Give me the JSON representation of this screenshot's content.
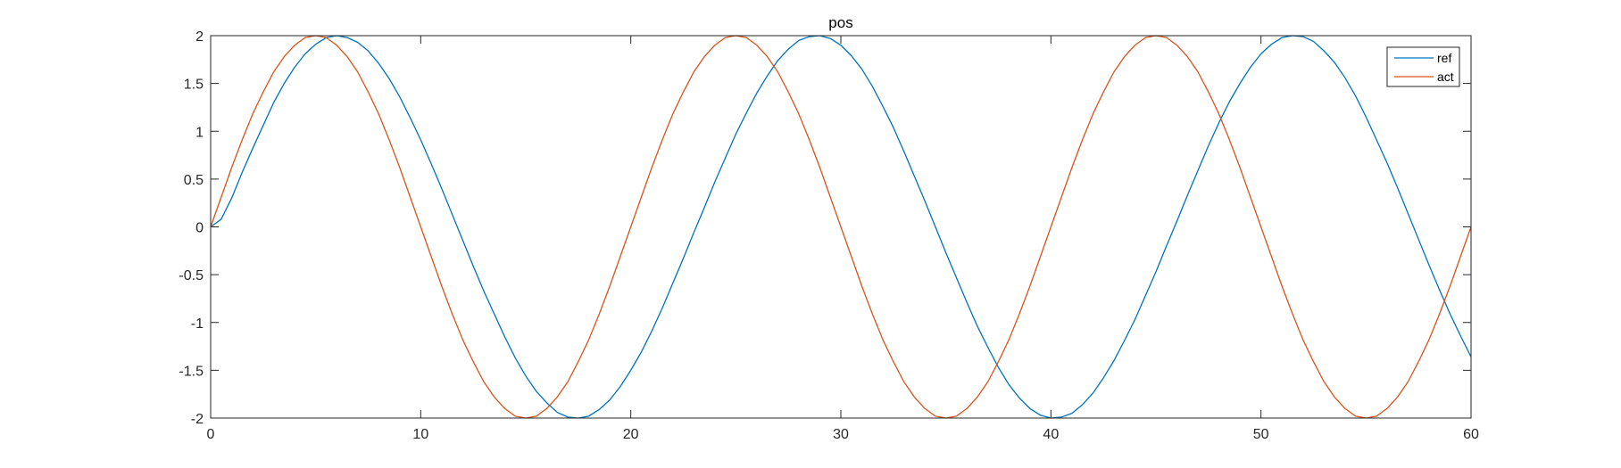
{
  "chart_data": {
    "type": "line",
    "title": "pos",
    "xlabel": "",
    "ylabel": "",
    "xlim": [
      0,
      60
    ],
    "ylim": [
      -2,
      2
    ],
    "xticks": [
      0,
      10,
      20,
      30,
      40,
      50,
      60
    ],
    "xtick_labels": [
      "0",
      "10",
      "20",
      "30",
      "40",
      "50",
      "60"
    ],
    "yticks": [
      2,
      1.5,
      1,
      0.5,
      0,
      -0.5,
      -1,
      -1.5,
      -2
    ],
    "ytick_labels": [
      "2",
      "1.5",
      "1",
      "0.5",
      "0",
      "-0.5",
      "-1",
      "-1.5",
      "-2"
    ],
    "grid": false,
    "legend": {
      "position": "top-right",
      "entries": [
        "ref",
        "act"
      ]
    },
    "series": [
      {
        "name": "ref",
        "color": "#0072BD",
        "description_function": "lagged sine, amplitude 2, period 20",
        "x": [
          0,
          0.5,
          1,
          1.5,
          2,
          2.5,
          3,
          3.5,
          4,
          4.5,
          5,
          5.5,
          6,
          6.5,
          7,
          7.5,
          8,
          8.5,
          9,
          9.5,
          10,
          10.5,
          11,
          11.5,
          12,
          12.5,
          13,
          13.5,
          14,
          14.5,
          15,
          15.5,
          16,
          16.5,
          17,
          17.5,
          18,
          18.5,
          19,
          19.5,
          20,
          20.5,
          21,
          21.5,
          22,
          22.5,
          23,
          23.5,
          24,
          24.5,
          25,
          25.5,
          26,
          26.5,
          27,
          27.5,
          28,
          28.5,
          29,
          29.5,
          30,
          30.5,
          31,
          31.5,
          32,
          32.5,
          33,
          33.5,
          34,
          34.5,
          35,
          35.5,
          36,
          36.5,
          37,
          37.5,
          38,
          38.5,
          39,
          39.5,
          40,
          40.5,
          41,
          41.5,
          42,
          42.5,
          43,
          43.5,
          44,
          44.5,
          45,
          45.5,
          46,
          46.5,
          47,
          47.5,
          48,
          48.5,
          49,
          49.5,
          50,
          50.5,
          51,
          51.5,
          52,
          52.5,
          53,
          53.5,
          54,
          54.5,
          55,
          55.5,
          56,
          56.5,
          57,
          57.5,
          58,
          58.5,
          59,
          59.5,
          60
        ],
        "y": [
          0,
          0.08,
          0.3,
          0.57,
          0.82,
          1.06,
          1.3,
          1.5,
          1.67,
          1.81,
          1.91,
          1.98,
          2.0,
          1.98,
          1.93,
          1.84,
          1.71,
          1.55,
          1.36,
          1.14,
          0.91,
          0.66,
          0.4,
          0.13,
          -0.14,
          -0.41,
          -0.67,
          -0.91,
          -1.15,
          -1.37,
          -1.56,
          -1.72,
          -1.84,
          -1.94,
          -1.99,
          -2.0,
          -1.98,
          -1.91,
          -1.81,
          -1.67,
          -1.5,
          -1.31,
          -1.09,
          -0.85,
          -0.59,
          -0.33,
          -0.06,
          0.2,
          0.47,
          0.72,
          0.97,
          1.19,
          1.4,
          1.58,
          1.74,
          1.86,
          1.95,
          1.99,
          2.0,
          1.97,
          1.9,
          1.79,
          1.65,
          1.47,
          1.26,
          1.04,
          0.79,
          0.53,
          0.27,
          0.0,
          -0.27,
          -0.53,
          -0.79,
          -1.04,
          -1.26,
          -1.47,
          -1.65,
          -1.79,
          -1.9,
          -1.97,
          -2.0,
          -1.99,
          -1.95,
          -1.86,
          -1.74,
          -1.58,
          -1.4,
          -1.19,
          -0.97,
          -0.72,
          -0.47,
          -0.2,
          0.06,
          0.33,
          0.59,
          0.85,
          1.09,
          1.31,
          1.5,
          1.67,
          1.81,
          1.91,
          1.98,
          2.0,
          1.99,
          1.94,
          1.84,
          1.72,
          1.56,
          1.37,
          1.15,
          0.91,
          0.67,
          0.41,
          0.14,
          -0.13,
          -0.4,
          -0.66,
          -0.91,
          -1.14,
          -1.36
        ]
      },
      {
        "name": "act",
        "color": "#D95319",
        "x": [
          0,
          0.5,
          1,
          1.5,
          2,
          2.5,
          3,
          3.5,
          4,
          4.5,
          5,
          5.5,
          6,
          6.5,
          7,
          7.5,
          8,
          8.5,
          9,
          9.5,
          10,
          10.5,
          11,
          11.5,
          12,
          12.5,
          13,
          13.5,
          14,
          14.5,
          15,
          15.5,
          16,
          16.5,
          17,
          17.5,
          18,
          18.5,
          19,
          19.5,
          20,
          20.5,
          21,
          21.5,
          22,
          22.5,
          23,
          23.5,
          24,
          24.5,
          25,
          25.5,
          26,
          26.5,
          27,
          27.5,
          28,
          28.5,
          29,
          29.5,
          30,
          30.5,
          31,
          31.5,
          32,
          32.5,
          33,
          33.5,
          34,
          34.5,
          35,
          35.5,
          36,
          36.5,
          37,
          37.5,
          38,
          38.5,
          39,
          39.5,
          40,
          40.5,
          41,
          41.5,
          42,
          42.5,
          43,
          43.5,
          44,
          44.5,
          45,
          45.5,
          46,
          46.5,
          47,
          47.5,
          48,
          48.5,
          49,
          49.5,
          50,
          50.5,
          51,
          51.5,
          52,
          52.5,
          53,
          53.5,
          54,
          54.5,
          55,
          55.5,
          56,
          56.5,
          57,
          57.5,
          58,
          58.5,
          59,
          59.5,
          60
        ],
        "y": [
          0,
          0.31,
          0.62,
          0.91,
          1.18,
          1.41,
          1.62,
          1.78,
          1.9,
          1.98,
          2.0,
          1.98,
          1.9,
          1.78,
          1.62,
          1.41,
          1.18,
          0.91,
          0.62,
          0.31,
          0.0,
          -0.31,
          -0.62,
          -0.91,
          -1.18,
          -1.41,
          -1.62,
          -1.78,
          -1.9,
          -1.98,
          -2.0,
          -1.98,
          -1.9,
          -1.78,
          -1.62,
          -1.41,
          -1.18,
          -0.91,
          -0.62,
          -0.31,
          0.0,
          0.31,
          0.62,
          0.91,
          1.18,
          1.41,
          1.62,
          1.78,
          1.9,
          1.98,
          2.0,
          1.98,
          1.9,
          1.78,
          1.62,
          1.41,
          1.18,
          0.91,
          0.62,
          0.31,
          0.0,
          -0.31,
          -0.62,
          -0.91,
          -1.18,
          -1.41,
          -1.62,
          -1.78,
          -1.9,
          -1.98,
          -2.0,
          -1.98,
          -1.9,
          -1.78,
          -1.62,
          -1.41,
          -1.18,
          -0.91,
          -0.62,
          -0.31,
          0.0,
          0.31,
          0.62,
          0.91,
          1.18,
          1.41,
          1.62,
          1.78,
          1.9,
          1.98,
          2.0,
          1.98,
          1.9,
          1.78,
          1.62,
          1.41,
          1.18,
          0.91,
          0.62,
          0.31,
          0.0,
          -0.31,
          -0.62,
          -0.91,
          -1.18,
          -1.41,
          -1.62,
          -1.78,
          -1.9,
          -1.98,
          -2.0,
          -1.98,
          -1.9,
          -1.78,
          -1.62,
          -1.41,
          -1.18,
          -0.91,
          -0.62,
          -0.31,
          0.0
        ]
      }
    ]
  }
}
